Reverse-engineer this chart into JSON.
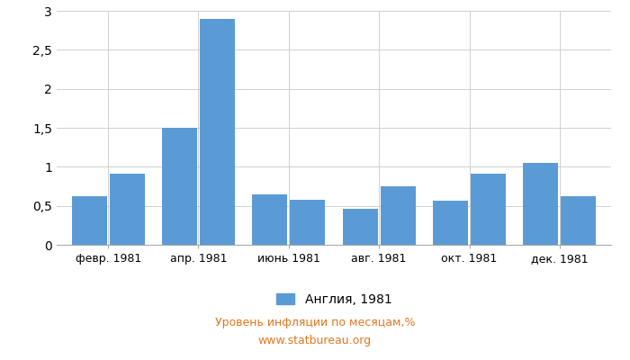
{
  "months_count": 12,
  "values": [
    0.62,
    0.91,
    1.5,
    2.9,
    0.65,
    0.58,
    0.46,
    0.75,
    0.57,
    0.91,
    1.05,
    0.62
  ],
  "xtick_labels": [
    "февр. 1981",
    "апр. 1981",
    "июнь 1981",
    "авг. 1981",
    "окт. 1981",
    "дек. 1981"
  ],
  "bar_color": "#5b9bd5",
  "ylim": [
    0,
    3.0
  ],
  "yticks": [
    0,
    0.5,
    1.0,
    1.5,
    2.0,
    2.5,
    3.0
  ],
  "ytick_labels": [
    "0",
    "0,5",
    "1",
    "1,5",
    "2",
    "2,5",
    "3"
  ],
  "legend_label": "Англия, 1981",
  "subtitle": "Уровень инфляции по месяцам,%",
  "source": "www.statbureau.org",
  "subtitle_color": "#e07820",
  "background_color": "#ffffff",
  "grid_color": "#d0d0d0"
}
